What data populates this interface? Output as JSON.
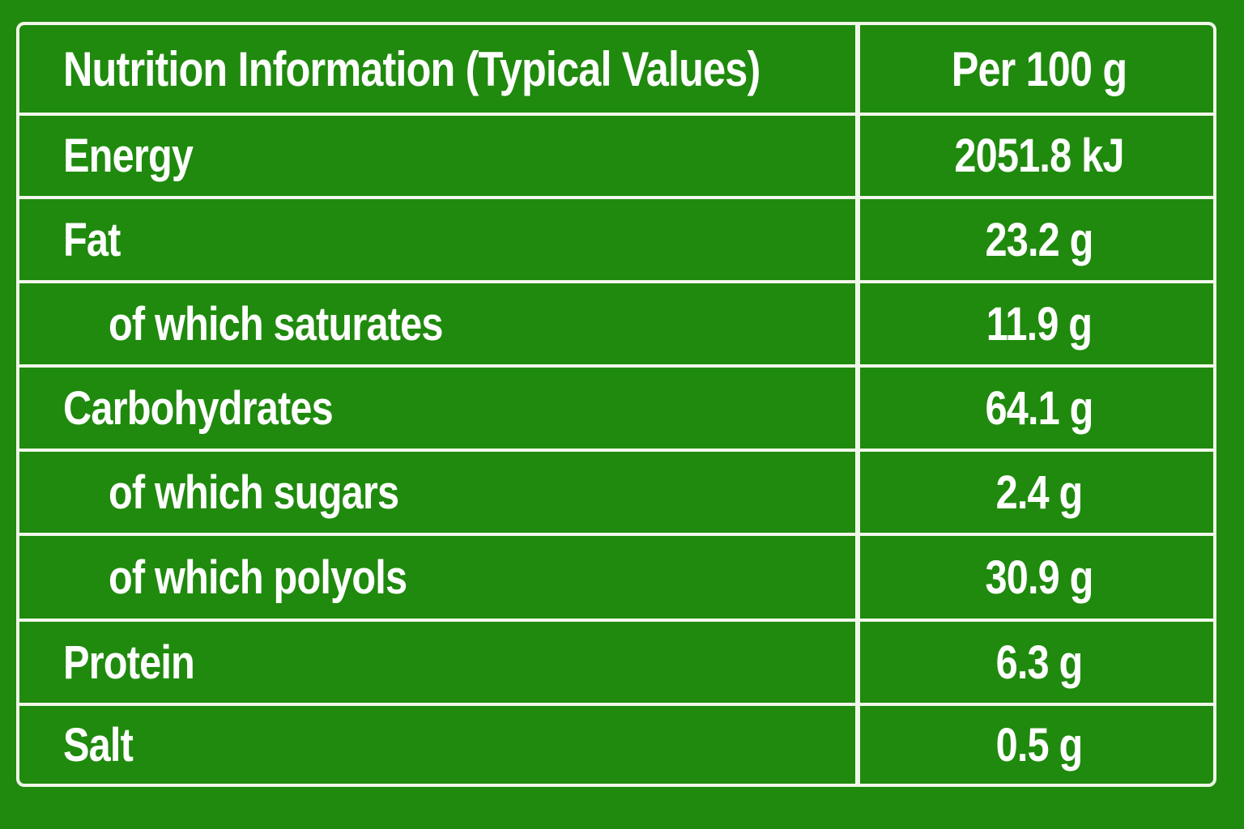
{
  "table": {
    "header": {
      "label": "Nutrition Information (Typical Values)",
      "value": "Per 100 g"
    },
    "rows": [
      {
        "label": "Energy",
        "value": "2051.8 kJ",
        "indent": false
      },
      {
        "label": "Fat",
        "value": "23.2 g",
        "indent": false
      },
      {
        "label": "of which saturates",
        "value": "11.9 g",
        "indent": true
      },
      {
        "label": "Carbohydrates",
        "value": "64.1 g",
        "indent": false
      },
      {
        "label": "of which sugars",
        "value": "2.4 g",
        "indent": true
      },
      {
        "label": "of which polyols",
        "value": "30.9 g",
        "indent": true
      },
      {
        "label": "Protein",
        "value": "6.3 g",
        "indent": false
      },
      {
        "label": "Salt",
        "value": "0.5 g",
        "indent": false
      }
    ]
  },
  "colors": {
    "background": "#1f8a0d",
    "lines": "#f1f7ea",
    "text": "#ffffff"
  }
}
